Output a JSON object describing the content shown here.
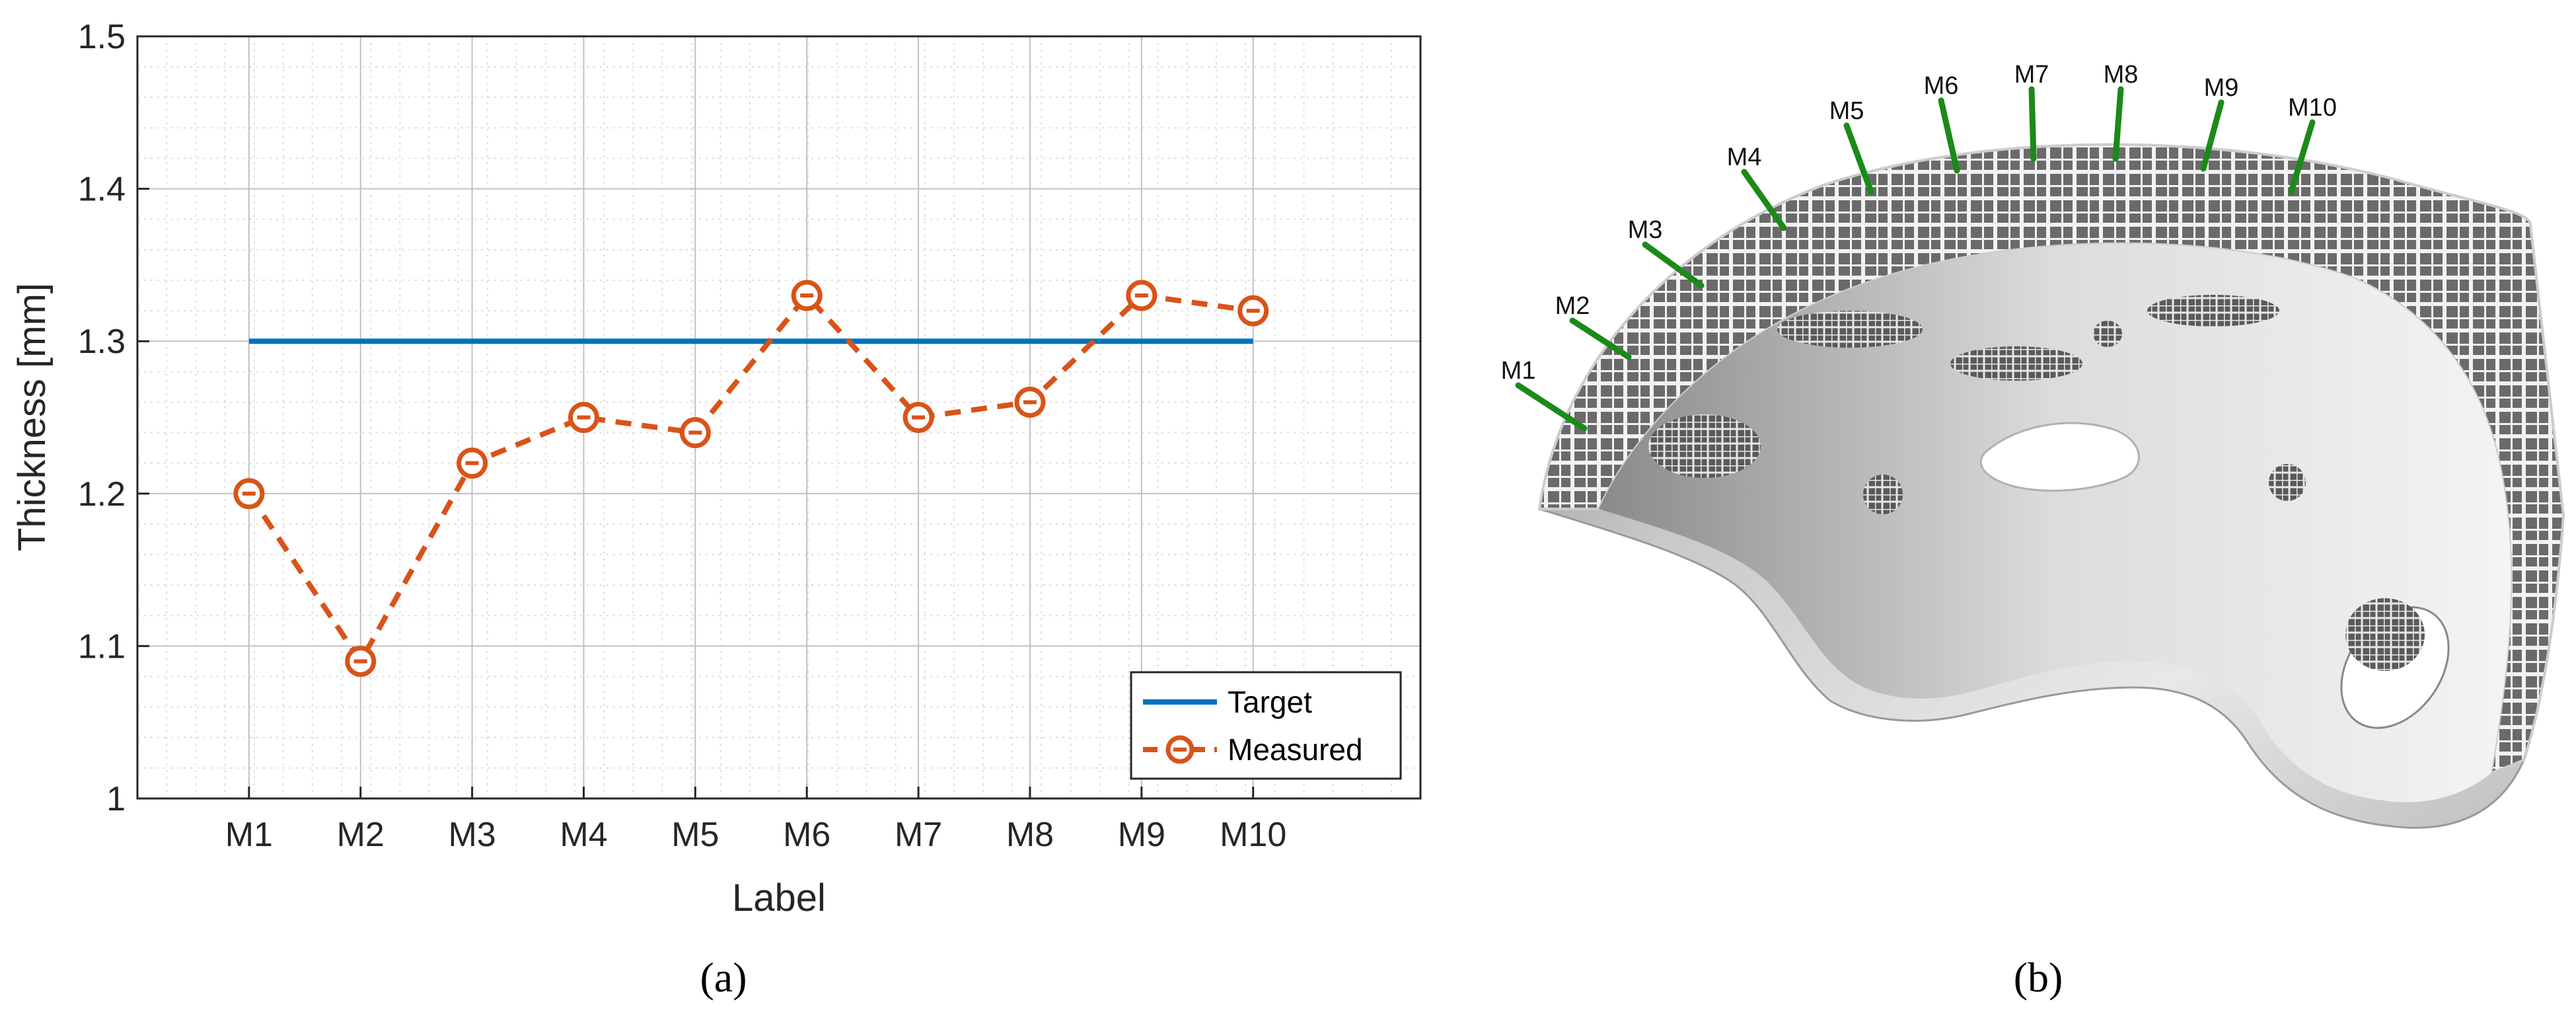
{
  "chart_data": {
    "type": "line",
    "categories": [
      "M1",
      "M2",
      "M3",
      "M4",
      "M5",
      "M6",
      "M7",
      "M8",
      "M9",
      "M10"
    ],
    "series": [
      {
        "name": "Target",
        "values": [
          1.3,
          1.3,
          1.3,
          1.3,
          1.3,
          1.3,
          1.3,
          1.3,
          1.3,
          1.3
        ],
        "color": "#0072BD",
        "style": "solid"
      },
      {
        "name": "Measured",
        "values": [
          1.2,
          1.09,
          1.22,
          1.25,
          1.24,
          1.33,
          1.25,
          1.26,
          1.33,
          1.32
        ],
        "color": "#D95319",
        "style": "dashed",
        "marker": "circle"
      }
    ],
    "xlabel": "Label",
    "ylabel": "Thickness [mm]",
    "ylim": [
      1.0,
      1.5
    ],
    "yticks": [
      "1",
      "1.1",
      "1.2",
      "1.3",
      "1.4",
      "1.5"
    ],
    "grid": "major and minor",
    "legend_position": "bottom-right"
  },
  "panels": {
    "a": "(a)",
    "b": "(b)"
  },
  "helmet": {
    "markers": [
      "M1",
      "M2",
      "M3",
      "M4",
      "M5",
      "M6",
      "M7",
      "M8",
      "M9",
      "M10"
    ],
    "arrow_color": "#1a8a1a"
  }
}
